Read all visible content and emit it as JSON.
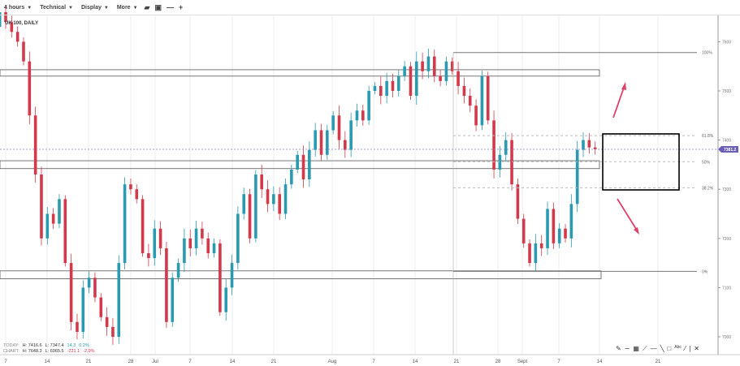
{
  "toolbar": {
    "interval": "4 hours",
    "technical": "Technical",
    "display": "Display",
    "more": "More"
  },
  "chart_title": "UK 100, DAILY",
  "stats": {
    "today_label": "TODAY:",
    "today_high": "H: 7416.6",
    "today_low": "L: 7347.4",
    "today_change": "14.3",
    "today_pct": "0.2%",
    "chart_label": "CHART:",
    "chart_high": "H: 7648.3",
    "chart_low": "L: 6965.5",
    "chart_change": "-221.1",
    "chart_pct": "-2.9%"
  },
  "colors": {
    "up": "#2a9ab0",
    "down": "#d23a4b",
    "price_tag": "#6a5fb5",
    "arrow": "#e0406a"
  },
  "chart_data": {
    "type": "candlestick",
    "ylim": [
      6980,
      7660
    ],
    "y_ticks": [
      7000,
      7100,
      7200,
      7300,
      7400,
      7500,
      7600
    ],
    "x_ticks": [
      "7",
      "14",
      "21",
      "28",
      "Jul",
      "7",
      "14",
      "21",
      "Aug",
      "7",
      "14",
      "21",
      "28",
      "Sept",
      "7",
      "14",
      "21"
    ],
    "start_date": "Jun 4",
    "closes": [
      7650,
      7630,
      7660,
      7640,
      7620,
      7600,
      7560,
      7450,
      7330,
      7200,
      7250,
      7230,
      7280,
      7150,
      7030,
      7010,
      7100,
      7120,
      7080,
      7040,
      7020,
      7000,
      7150,
      7310,
      7300,
      7280,
      7170,
      7160,
      7220,
      7180,
      7030,
      7120,
      7150,
      7200,
      7180,
      7220,
      7200,
      7170,
      7190,
      7050,
      7100,
      7150,
      7250,
      7290,
      7200,
      7330,
      7300,
      7270,
      7290,
      7250,
      7310,
      7340,
      7370,
      7320,
      7380,
      7420,
      7370,
      7420,
      7450,
      7400,
      7380,
      7440,
      7460,
      7440,
      7500,
      7510,
      7490,
      7520,
      7500,
      7530,
      7550,
      7490,
      7560,
      7540,
      7570,
      7530,
      7520,
      7560,
      7540,
      7510,
      7490,
      7470,
      7430,
      7530,
      7440,
      7340,
      7370,
      7400,
      7310,
      7240,
      7190,
      7150,
      7190,
      7180,
      7260,
      7190,
      7220,
      7200,
      7270,
      7380,
      7400,
      7385,
      7381.2
    ],
    "current_price": "7381.2",
    "fib_levels": [
      {
        "label": "100%",
        "price": 7578
      },
      {
        "label": "61.8%",
        "price": 7409
      },
      {
        "label": "50%",
        "price": 7356
      },
      {
        "label": "38.2%",
        "price": 7303
      },
      {
        "label": "0%",
        "price": 7133
      }
    ],
    "zones": [
      [
        7530,
        7543
      ],
      [
        7342,
        7358
      ],
      [
        7118,
        7134
      ]
    ]
  }
}
